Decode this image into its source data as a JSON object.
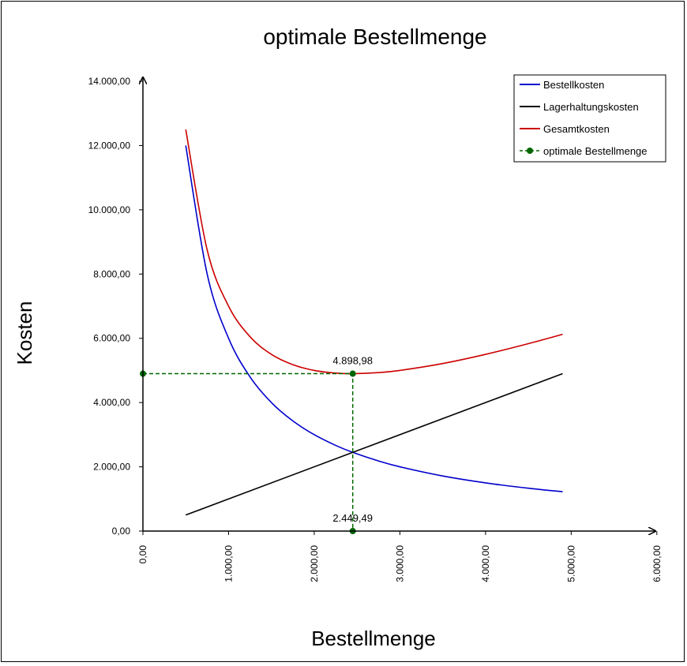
{
  "chart_data": {
    "type": "line",
    "title": "optimale Bestellmenge",
    "xlabel": "Bestellmenge",
    "ylabel": "Kosten",
    "xlim": [
      0,
      6000
    ],
    "ylim": [
      0,
      14000
    ],
    "x_ticks": [
      0,
      1000,
      2000,
      3000,
      4000,
      5000,
      6000
    ],
    "x_tick_labels": [
      "0,00",
      "1.000,00",
      "2.000,00",
      "3.000,00",
      "4.000,00",
      "5.000,00",
      "6.000,00"
    ],
    "y_ticks": [
      0,
      2000,
      4000,
      6000,
      8000,
      10000,
      12000,
      14000
    ],
    "y_tick_labels": [
      "0,00",
      "2.000,00",
      "4.000,00",
      "6.000,00",
      "8.000,00",
      "10.000,00",
      "12.000,00",
      "14.000,00"
    ],
    "legend_position": "top-right",
    "series": [
      {
        "name": "Bestellkosten",
        "color": "#0000cc",
        "x": [
          500,
          750,
          1000,
          1250,
          1500,
          1750,
          2000,
          2250,
          2449.49,
          2750,
          3000,
          3500,
          4000,
          4500,
          4900
        ],
        "y": [
          12000,
          8000,
          6000,
          4800,
          4000,
          3428.57,
          3000,
          2666.67,
          2449.49,
          2181.82,
          2000,
          1714.29,
          1500,
          1333.33,
          1224.49
        ]
      },
      {
        "name": "Lagerhaltungskosten",
        "color": "#000000",
        "x": [
          500,
          4900
        ],
        "y": [
          500,
          4900
        ]
      },
      {
        "name": "Gesamtkosten",
        "color": "#cc0000",
        "x": [
          500,
          750,
          1000,
          1250,
          1500,
          1750,
          2000,
          2250,
          2449.49,
          2750,
          3000,
          3500,
          4000,
          4500,
          4900
        ],
        "y": [
          12500,
          8750,
          7000,
          6050,
          5500,
          5178.57,
          5000,
          4916.67,
          4898.98,
          4931.82,
          5000,
          5214.29,
          5500,
          5833.33,
          6124.49
        ]
      },
      {
        "name": "optimale Bestellmenge",
        "color": "#006600",
        "style": "dashed-with-markers",
        "x": [
          0,
          2449.49,
          2449.49
        ],
        "y": [
          4898.98,
          4898.98,
          0
        ]
      }
    ],
    "annotations": [
      {
        "text": "4.898,98",
        "x": 2449.49,
        "y": 4898.98
      },
      {
        "text": "2.449,49",
        "x": 2449.49,
        "y": 0
      }
    ]
  }
}
